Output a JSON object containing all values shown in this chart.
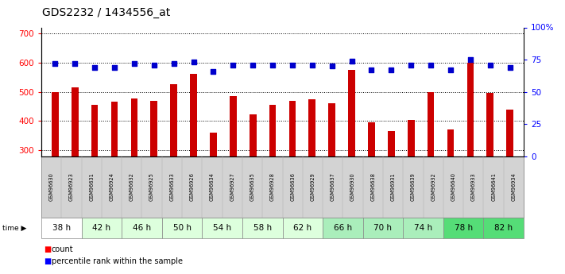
{
  "title": "GDS2232 / 1434556_at",
  "samples": [
    "GSM96630",
    "GSM96923",
    "GSM96631",
    "GSM96924",
    "GSM96632",
    "GSM96925",
    "GSM96633",
    "GSM96926",
    "GSM96634",
    "GSM96927",
    "GSM96635",
    "GSM96928",
    "GSM96636",
    "GSM96929",
    "GSM96637",
    "GSM96930",
    "GSM96638",
    "GSM96931",
    "GSM96639",
    "GSM96932",
    "GSM96640",
    "GSM96933",
    "GSM96641",
    "GSM96934"
  ],
  "counts": [
    500,
    515,
    455,
    465,
    478,
    470,
    525,
    560,
    360,
    485,
    422,
    455,
    470,
    475,
    460,
    575,
    395,
    365,
    403,
    498,
    370,
    600,
    495,
    438
  ],
  "percentiles": [
    72,
    72,
    69,
    69,
    72,
    71,
    72,
    73,
    66,
    71,
    71,
    71,
    71,
    71,
    70,
    74,
    67,
    67,
    71,
    71,
    67,
    75,
    71,
    69
  ],
  "time_groups": [
    {
      "label": "38 h",
      "color": "#ffffff"
    },
    {
      "label": "42 h",
      "color": "#ddffdd"
    },
    {
      "label": "46 h",
      "color": "#ddffdd"
    },
    {
      "label": "50 h",
      "color": "#ddffdd"
    },
    {
      "label": "54 h",
      "color": "#ddffdd"
    },
    {
      "label": "58 h",
      "color": "#ddffdd"
    },
    {
      "label": "62 h",
      "color": "#ddffdd"
    },
    {
      "label": "66 h",
      "color": "#aaeebb"
    },
    {
      "label": "70 h",
      "color": "#aaeebb"
    },
    {
      "label": "74 h",
      "color": "#aaeebb"
    },
    {
      "label": "78 h",
      "color": "#55dd77"
    },
    {
      "label": "82 h",
      "color": "#55dd77"
    }
  ],
  "bar_color": "#cc0000",
  "dot_color": "#0000cc",
  "ylim_left": [
    280,
    720
  ],
  "ylim_right": [
    0,
    100
  ],
  "yticks_left": [
    300,
    400,
    500,
    600,
    700
  ],
  "yticks_right": [
    0,
    25,
    50,
    75,
    100
  ],
  "background_color": "#ffffff",
  "plot_bg_color": "#ffffff"
}
